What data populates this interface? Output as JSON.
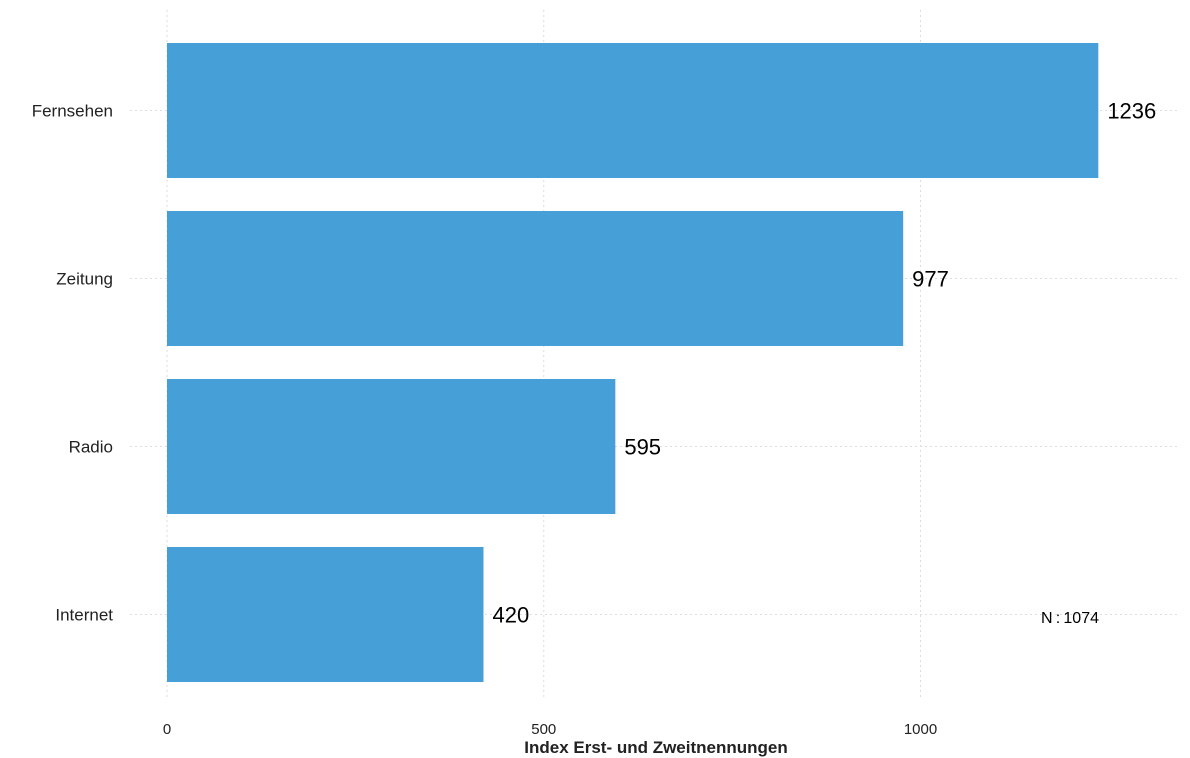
{
  "chart_data": {
    "type": "bar",
    "orientation": "horizontal",
    "categories": [
      "Fernsehen",
      "Zeitung",
      "Radio",
      "Internet"
    ],
    "values": [
      1236,
      977,
      595,
      420
    ],
    "value_labels": [
      "1236",
      "977",
      "595",
      "420"
    ],
    "xlabel": "Index Erst- und Zweitnennungen",
    "ylabel": "",
    "xlim": [
      0,
      1300
    ],
    "xticks": [
      0,
      500,
      1000
    ],
    "xtick_labels": [
      "0",
      "500",
      "1000"
    ],
    "grid": true,
    "annotation": "N : 1074",
    "colors": {
      "bar": "#479fd7",
      "grid": "#dddddd",
      "text": "#222222"
    }
  }
}
